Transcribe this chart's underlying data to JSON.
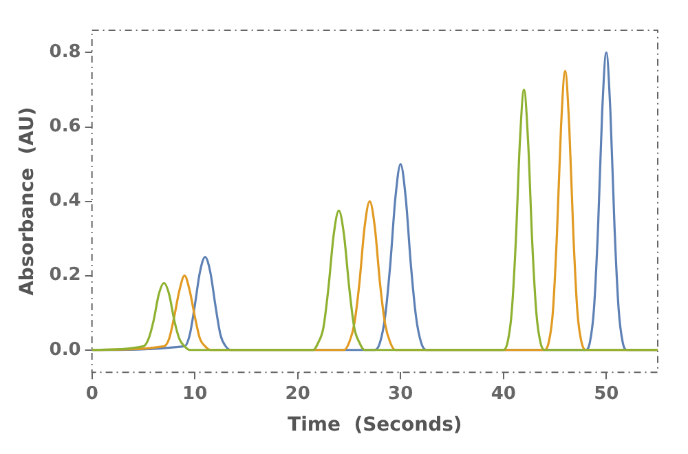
{
  "chart_data": {
    "type": "line",
    "xlabel": "Time  (Seconds)",
    "ylabel": "Absorbance  (AU)",
    "xlim": [
      0,
      55
    ],
    "ylim": [
      -0.06,
      0.86
    ],
    "xticks": [
      0,
      10,
      20,
      30,
      40,
      50
    ],
    "yticks": [
      {
        "value": 0,
        "label": "0.0"
      },
      0.2,
      0.4,
      0.6,
      0.8
    ],
    "grid": false,
    "legend": false,
    "marker": "none",
    "line_style": "solid",
    "series": [
      {
        "color": "#8fb131",
        "x": [
          0,
          5,
          5.5,
          6,
          6.5,
          7,
          7.5,
          8,
          8.5,
          9,
          9.5,
          21.5,
          22,
          22.5,
          23,
          23.5,
          24,
          24.5,
          25,
          25.5,
          26,
          26.5,
          40,
          40.4,
          40.8,
          41.2,
          41.6,
          42,
          42.4,
          42.8,
          43.2,
          43.6,
          44,
          55
        ],
        "values": [
          0,
          0.01,
          0.03,
          0.08,
          0.15,
          0.18,
          0.15,
          0.08,
          0.03,
          0.01,
          0,
          0,
          0.02,
          0.06,
          0.17,
          0.31,
          0.375,
          0.31,
          0.17,
          0.06,
          0.02,
          0,
          0,
          0.02,
          0.1,
          0.29,
          0.56,
          0.7,
          0.56,
          0.29,
          0.1,
          0.02,
          0,
          0
        ]
      },
      {
        "color": "#e19a22",
        "x": [
          0,
          7,
          7.5,
          8,
          8.5,
          9,
          9.5,
          10,
          10.5,
          11,
          11.5,
          24.5,
          25,
          25.5,
          26,
          26.5,
          27,
          27.5,
          28,
          28.5,
          29,
          29.5,
          44,
          44.4,
          44.8,
          45.2,
          45.6,
          46,
          46.4,
          46.8,
          47.2,
          47.6,
          48,
          55
        ],
        "values": [
          0,
          0.01,
          0.03,
          0.09,
          0.16,
          0.2,
          0.16,
          0.09,
          0.03,
          0.01,
          0,
          0,
          0.02,
          0.07,
          0.18,
          0.33,
          0.4,
          0.33,
          0.18,
          0.07,
          0.02,
          0,
          0,
          0.02,
          0.1,
          0.31,
          0.6,
          0.75,
          0.6,
          0.31,
          0.1,
          0.02,
          0,
          0
        ]
      },
      {
        "color": "#5e81b5",
        "x": [
          0,
          9,
          9.5,
          10,
          10.5,
          11,
          11.5,
          12,
          12.5,
          13,
          13.5,
          27.5,
          28,
          28.5,
          29,
          29.5,
          30,
          30.5,
          31,
          31.5,
          32,
          32.5,
          48,
          48.4,
          48.8,
          49.2,
          49.6,
          50,
          50.4,
          50.8,
          51.2,
          51.6,
          52,
          55
        ],
        "values": [
          0,
          0.01,
          0.04,
          0.12,
          0.21,
          0.25,
          0.21,
          0.12,
          0.04,
          0.01,
          0,
          0,
          0.02,
          0.09,
          0.23,
          0.41,
          0.5,
          0.41,
          0.23,
          0.09,
          0.02,
          0,
          0,
          0.02,
          0.11,
          0.33,
          0.64,
          0.8,
          0.64,
          0.33,
          0.11,
          0.02,
          0,
          0
        ]
      }
    ]
  }
}
